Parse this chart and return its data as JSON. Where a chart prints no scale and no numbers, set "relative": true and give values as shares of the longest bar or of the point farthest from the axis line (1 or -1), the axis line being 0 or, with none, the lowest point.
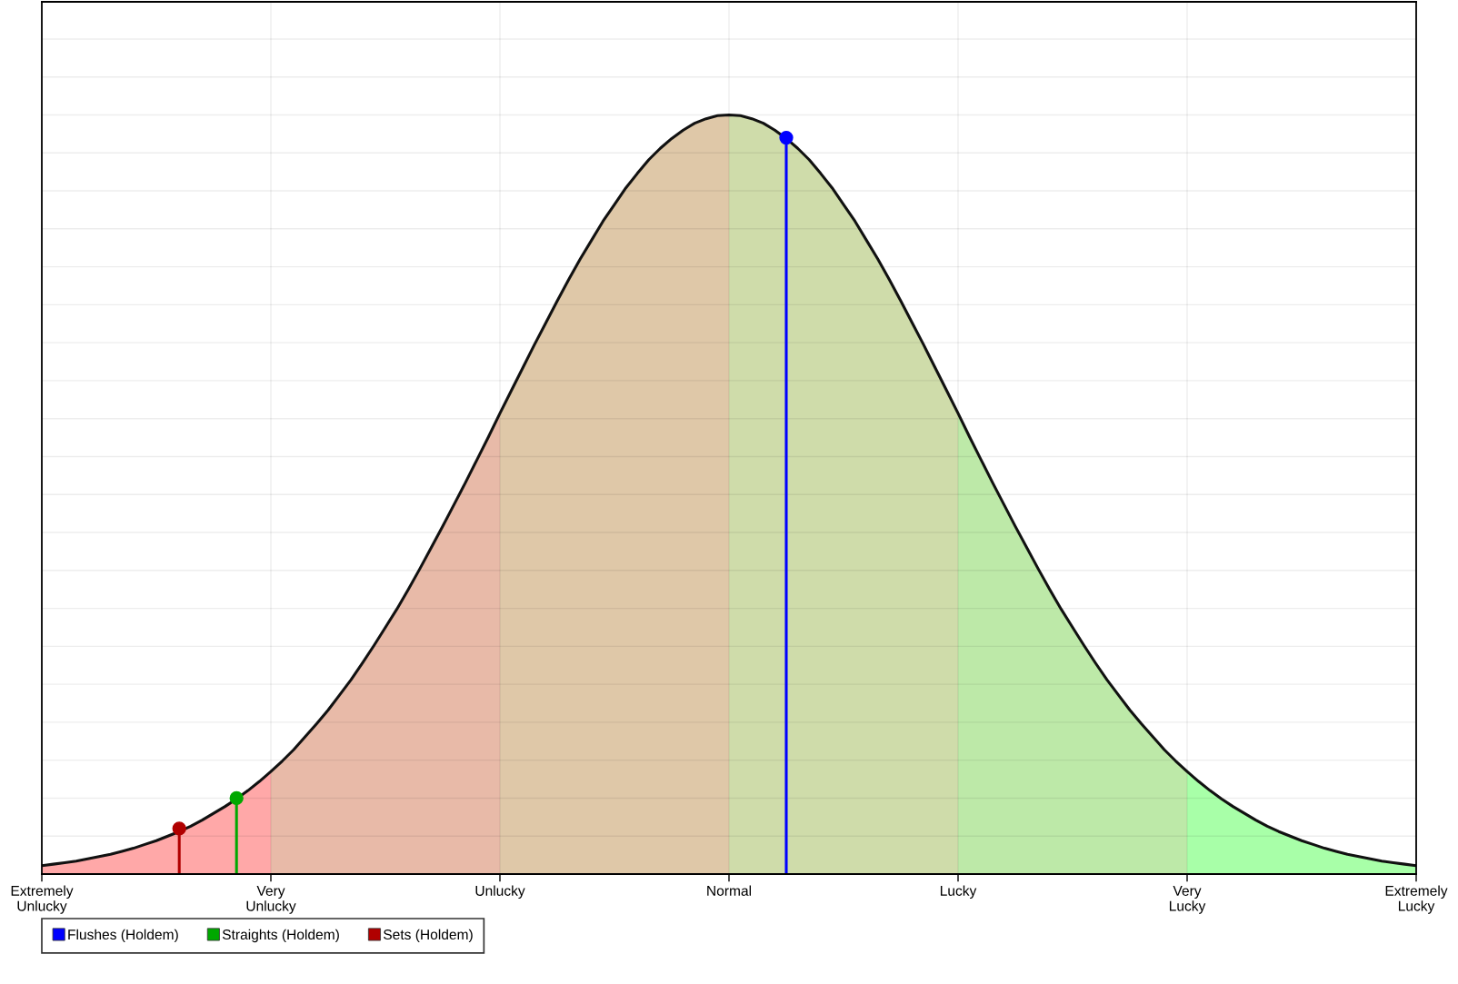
{
  "chart_data": {
    "type": "area",
    "relative": true,
    "grid": true,
    "legend": "bottom left",
    "tick_labels": "x",
    "categories": [
      "Extremely\nUnlucky",
      null,
      null,
      null,
      null,
      null,
      null,
      null,
      null,
      null,
      null,
      null,
      null,
      null,
      null,
      null,
      null,
      null,
      null,
      null,
      "Very\nUnlucky",
      null,
      null,
      null,
      null,
      null,
      null,
      null,
      null,
      null,
      null,
      null,
      null,
      null,
      null,
      null,
      null,
      null,
      null,
      null,
      "Unlucky",
      null,
      null,
      null,
      null,
      null,
      null,
      null,
      null,
      null,
      null,
      null,
      null,
      null,
      null,
      null,
      null,
      null,
      null,
      null,
      "Normal",
      null,
      null,
      null,
      null,
      null,
      null,
      null,
      null,
      null,
      null,
      null,
      null,
      null,
      null,
      null,
      null,
      null,
      null,
      null,
      "Lucky",
      null,
      null,
      null,
      null,
      null,
      null,
      null,
      null,
      null,
      null,
      null,
      null,
      null,
      null,
      null,
      null,
      null,
      null,
      null,
      "Very\nLucky",
      null,
      null,
      null,
      null,
      null,
      null,
      null,
      null,
      null,
      null,
      null,
      null,
      null,
      null,
      null,
      null,
      null,
      null,
      null,
      "Extremely\nLucky"
    ],
    "series": [
      {
        "color": "#ffa8a8",
        "values": [
          0.011,
          0.013,
          0.015,
          0.017,
          0.02,
          0.023,
          0.026,
          0.03,
          0.034,
          0.039,
          0.044,
          0.05,
          0.056,
          0.063,
          0.071,
          0.08,
          0.089,
          0.099,
          0.11,
          0.122,
          0.135,
          null,
          null,
          null,
          null,
          null,
          null,
          null,
          null,
          null,
          null,
          null,
          null,
          null,
          null,
          null,
          null,
          null,
          null,
          null,
          null,
          null,
          null,
          null,
          null,
          null,
          null,
          null,
          null,
          null,
          null,
          null,
          null,
          null,
          null,
          null,
          null,
          null,
          null,
          null,
          null,
          null,
          null,
          null,
          null,
          null,
          null,
          null,
          null,
          null,
          null,
          null,
          null,
          null,
          null,
          null,
          null,
          null,
          null,
          null,
          null,
          null,
          null,
          null,
          null,
          null,
          null,
          null,
          null,
          null,
          null,
          null,
          null,
          null,
          null,
          null,
          null,
          null,
          null,
          null,
          null,
          null,
          null,
          null,
          null,
          null,
          null,
          null,
          null,
          null,
          null,
          null,
          null,
          null,
          null,
          null,
          null,
          null,
          null,
          null,
          null
        ]
      },
      {
        "color": "#e8baa8",
        "values": [
          null,
          null,
          null,
          null,
          null,
          null,
          null,
          null,
          null,
          null,
          null,
          null,
          null,
          null,
          null,
          null,
          null,
          null,
          null,
          null,
          0.135,
          0.149,
          0.164,
          0.181,
          0.198,
          0.216,
          0.236,
          0.256,
          0.278,
          0.301,
          0.325,
          0.349,
          0.375,
          0.402,
          0.43,
          0.458,
          0.487,
          0.516,
          0.546,
          0.576,
          0.607,
          null,
          null,
          null,
          null,
          null,
          null,
          null,
          null,
          null,
          null,
          null,
          null,
          null,
          null,
          null,
          null,
          null,
          null,
          null,
          null,
          null,
          null,
          null,
          null,
          null,
          null,
          null,
          null,
          null,
          null,
          null,
          null,
          null,
          null,
          null,
          null,
          null,
          null,
          null,
          null,
          null,
          null,
          null,
          null,
          null,
          null,
          null,
          null,
          null,
          null,
          null,
          null,
          null,
          null,
          null,
          null,
          null,
          null,
          null,
          null,
          null,
          null,
          null,
          null,
          null,
          null,
          null,
          null,
          null,
          null,
          null,
          null,
          null,
          null,
          null,
          null,
          null,
          null,
          null,
          null
        ]
      },
      {
        "color": "#dfc8a8",
        "values": [
          null,
          null,
          null,
          null,
          null,
          null,
          null,
          null,
          null,
          null,
          null,
          null,
          null,
          null,
          null,
          null,
          null,
          null,
          null,
          null,
          null,
          null,
          null,
          null,
          null,
          null,
          null,
          null,
          null,
          null,
          null,
          null,
          null,
          null,
          null,
          null,
          null,
          null,
          null,
          null,
          0.607,
          0.637,
          0.667,
          0.697,
          0.726,
          0.755,
          0.783,
          0.81,
          0.835,
          0.86,
          0.882,
          0.904,
          0.923,
          0.941,
          0.956,
          0.969,
          0.98,
          0.989,
          0.995,
          0.999,
          1,
          null,
          null,
          null,
          null,
          null,
          null,
          null,
          null,
          null,
          null,
          null,
          null,
          null,
          null,
          null,
          null,
          null,
          null,
          null,
          null,
          null,
          null,
          null,
          null,
          null,
          null,
          null,
          null,
          null,
          null,
          null,
          null,
          null,
          null,
          null,
          null,
          null,
          null,
          null,
          null,
          null,
          null,
          null,
          null,
          null,
          null,
          null,
          null,
          null,
          null,
          null,
          null,
          null,
          null,
          null,
          null,
          null,
          null,
          null,
          null
        ]
      },
      {
        "color": "#cfdcaa",
        "values": [
          null,
          null,
          null,
          null,
          null,
          null,
          null,
          null,
          null,
          null,
          null,
          null,
          null,
          null,
          null,
          null,
          null,
          null,
          null,
          null,
          null,
          null,
          null,
          null,
          null,
          null,
          null,
          null,
          null,
          null,
          null,
          null,
          null,
          null,
          null,
          null,
          null,
          null,
          null,
          null,
          null,
          null,
          null,
          null,
          null,
          null,
          null,
          null,
          null,
          null,
          null,
          null,
          null,
          null,
          null,
          null,
          null,
          null,
          null,
          null,
          1,
          0.999,
          0.995,
          0.989,
          0.98,
          0.969,
          0.956,
          0.941,
          0.923,
          0.904,
          0.882,
          0.86,
          0.835,
          0.81,
          0.783,
          0.755,
          0.726,
          0.697,
          0.667,
          0.637,
          0.607,
          null,
          null,
          null,
          null,
          null,
          null,
          null,
          null,
          null,
          null,
          null,
          null,
          null,
          null,
          null,
          null,
          null,
          null,
          null,
          null,
          null,
          null,
          null,
          null,
          null,
          null,
          null,
          null,
          null,
          null,
          null,
          null,
          null,
          null,
          null,
          null,
          null,
          null,
          null,
          null
        ]
      },
      {
        "color": "#bde9a8",
        "values": [
          null,
          null,
          null,
          null,
          null,
          null,
          null,
          null,
          null,
          null,
          null,
          null,
          null,
          null,
          null,
          null,
          null,
          null,
          null,
          null,
          null,
          null,
          null,
          null,
          null,
          null,
          null,
          null,
          null,
          null,
          null,
          null,
          null,
          null,
          null,
          null,
          null,
          null,
          null,
          null,
          null,
          null,
          null,
          null,
          null,
          null,
          null,
          null,
          null,
          null,
          null,
          null,
          null,
          null,
          null,
          null,
          null,
          null,
          null,
          null,
          null,
          null,
          null,
          null,
          null,
          null,
          null,
          null,
          null,
          null,
          null,
          null,
          null,
          null,
          null,
          null,
          null,
          null,
          null,
          null,
          0.607,
          0.576,
          0.546,
          0.516,
          0.487,
          0.458,
          0.43,
          0.402,
          0.375,
          0.349,
          0.325,
          0.301,
          0.278,
          0.256,
          0.236,
          0.216,
          0.198,
          0.181,
          0.164,
          0.149,
          0.135,
          null,
          null,
          null,
          null,
          null,
          null,
          null,
          null,
          null,
          null,
          null,
          null,
          null,
          null,
          null,
          null,
          null,
          null,
          null,
          null
        ]
      },
      {
        "color": "#a8ffa8",
        "values": [
          null,
          null,
          null,
          null,
          null,
          null,
          null,
          null,
          null,
          null,
          null,
          null,
          null,
          null,
          null,
          null,
          null,
          null,
          null,
          null,
          null,
          null,
          null,
          null,
          null,
          null,
          null,
          null,
          null,
          null,
          null,
          null,
          null,
          null,
          null,
          null,
          null,
          null,
          null,
          null,
          null,
          null,
          null,
          null,
          null,
          null,
          null,
          null,
          null,
          null,
          null,
          null,
          null,
          null,
          null,
          null,
          null,
          null,
          null,
          null,
          null,
          null,
          null,
          null,
          null,
          null,
          null,
          null,
          null,
          null,
          null,
          null,
          null,
          null,
          null,
          null,
          null,
          null,
          null,
          null,
          null,
          null,
          null,
          null,
          null,
          null,
          null,
          null,
          null,
          null,
          null,
          null,
          null,
          null,
          null,
          null,
          null,
          null,
          null,
          null,
          0.135,
          0.122,
          0.11,
          0.099,
          0.089,
          0.08,
          0.071,
          0.063,
          0.056,
          0.05,
          0.044,
          0.039,
          0.034,
          0.03,
          0.026,
          0.023,
          0.02,
          0.017,
          0.015,
          0.013,
          0.011
        ]
      },
      {
        "type": "line",
        "color": "#111111",
        "values": [
          0.011,
          0.013,
          0.015,
          0.017,
          0.02,
          0.023,
          0.026,
          0.03,
          0.034,
          0.039,
          0.044,
          0.05,
          0.056,
          0.063,
          0.071,
          0.08,
          0.089,
          0.099,
          0.11,
          0.122,
          0.135,
          0.149,
          0.164,
          0.181,
          0.198,
          0.216,
          0.236,
          0.256,
          0.278,
          0.301,
          0.325,
          0.349,
          0.375,
          0.402,
          0.43,
          0.458,
          0.487,
          0.516,
          0.546,
          0.576,
          0.607,
          0.637,
          0.667,
          0.697,
          0.726,
          0.755,
          0.783,
          0.81,
          0.835,
          0.86,
          0.882,
          0.904,
          0.923,
          0.941,
          0.956,
          0.969,
          0.98,
          0.989,
          0.995,
          0.999,
          1,
          0.999,
          0.995,
          0.989,
          0.98,
          0.969,
          0.956,
          0.941,
          0.923,
          0.904,
          0.882,
          0.86,
          0.835,
          0.81,
          0.783,
          0.755,
          0.726,
          0.697,
          0.667,
          0.637,
          0.607,
          0.576,
          0.546,
          0.516,
          0.487,
          0.458,
          0.43,
          0.402,
          0.375,
          0.349,
          0.325,
          0.301,
          0.278,
          0.256,
          0.236,
          0.216,
          0.198,
          0.181,
          0.164,
          0.149,
          0.135,
          0.122,
          0.11,
          0.099,
          0.089,
          0.08,
          0.071,
          0.063,
          0.056,
          0.05,
          0.044,
          0.039,
          0.034,
          0.03,
          0.026,
          0.023,
          0.02,
          0.017,
          0.015,
          0.013,
          0.011
        ]
      },
      {
        "type": "lollipop",
        "name": "Flushes (Holdem)",
        "color": "#0000ff",
        "marker": "circle",
        "values": [
          null,
          null,
          null,
          null,
          null,
          null,
          null,
          null,
          null,
          null,
          null,
          null,
          null,
          null,
          null,
          null,
          null,
          null,
          null,
          null,
          null,
          null,
          null,
          null,
          null,
          null,
          null,
          null,
          null,
          null,
          null,
          null,
          null,
          null,
          null,
          null,
          null,
          null,
          null,
          null,
          null,
          null,
          null,
          null,
          null,
          null,
          null,
          null,
          null,
          null,
          null,
          null,
          null,
          null,
          null,
          null,
          null,
          null,
          null,
          null,
          null,
          null,
          null,
          null,
          null,
          0.97,
          null,
          null,
          null,
          null,
          null,
          null,
          null,
          null,
          null,
          null,
          null,
          null,
          null,
          null,
          null,
          null,
          null,
          null,
          null,
          null,
          null,
          null,
          null,
          null,
          null,
          null,
          null,
          null,
          null,
          null,
          null,
          null,
          null,
          null,
          null,
          null,
          null,
          null,
          null,
          null,
          null,
          null,
          null,
          null,
          null,
          null,
          null,
          null,
          null,
          null,
          null,
          null,
          null,
          null,
          null
        ]
      },
      {
        "type": "lollipop",
        "name": "Straights (Holdem)",
        "color": "#00a800",
        "marker": "circle",
        "values": [
          null,
          null,
          null,
          null,
          null,
          null,
          null,
          null,
          null,
          null,
          null,
          null,
          null,
          null,
          null,
          null,
          null,
          0.1,
          null,
          null,
          null,
          null,
          null,
          null,
          null,
          null,
          null,
          null,
          null,
          null,
          null,
          null,
          null,
          null,
          null,
          null,
          null,
          null,
          null,
          null,
          null,
          null,
          null,
          null,
          null,
          null,
          null,
          null,
          null,
          null,
          null,
          null,
          null,
          null,
          null,
          null,
          null,
          null,
          null,
          null,
          null,
          null,
          null,
          null,
          null,
          null,
          null,
          null,
          null,
          null,
          null,
          null,
          null,
          null,
          null,
          null,
          null,
          null,
          null,
          null,
          null,
          null,
          null,
          null,
          null,
          null,
          null,
          null,
          null,
          null,
          null,
          null,
          null,
          null,
          null,
          null,
          null,
          null,
          null,
          null,
          null,
          null,
          null,
          null,
          null,
          null,
          null,
          null,
          null,
          null,
          null,
          null,
          null,
          null,
          null,
          null,
          null,
          null,
          null,
          null,
          null
        ]
      },
      {
        "type": "lollipop",
        "name": "Sets (Holdem)",
        "color": "#b00000",
        "marker": "circle",
        "values": [
          null,
          null,
          null,
          null,
          null,
          null,
          null,
          null,
          null,
          null,
          null,
          null,
          0.06,
          null,
          null,
          null,
          null,
          null,
          null,
          null,
          null,
          null,
          null,
          null,
          null,
          null,
          null,
          null,
          null,
          null,
          null,
          null,
          null,
          null,
          null,
          null,
          null,
          null,
          null,
          null,
          null,
          null,
          null,
          null,
          null,
          null,
          null,
          null,
          null,
          null,
          null,
          null,
          null,
          null,
          null,
          null,
          null,
          null,
          null,
          null,
          null,
          null,
          null,
          null,
          null,
          null,
          null,
          null,
          null,
          null,
          null,
          null,
          null,
          null,
          null,
          null,
          null,
          null,
          null,
          null,
          null,
          null,
          null,
          null,
          null,
          null,
          null,
          null,
          null,
          null,
          null,
          null,
          null,
          null,
          null,
          null,
          null,
          null,
          null,
          null,
          null,
          null,
          null,
          null,
          null,
          null,
          null,
          null,
          null,
          null,
          null,
          null,
          null,
          null,
          null,
          null,
          null,
          null,
          null,
          null,
          null
        ]
      }
    ]
  }
}
